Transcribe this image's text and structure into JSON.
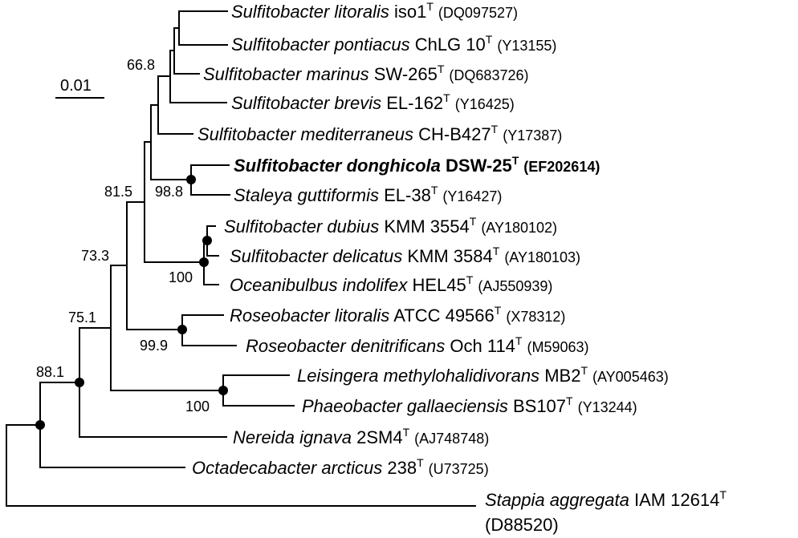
{
  "scale_bar": {
    "label": "0.01"
  },
  "taxa": [
    {
      "genus_species": "Sulfitobacter litoralis",
      "strain": "iso1",
      "type_mark": "T",
      "accession": "(DQ097527)",
      "highlight": false
    },
    {
      "genus_species": "Sulfitobacter pontiacus",
      "strain": "ChLG 10",
      "type_mark": "T",
      "accession": "(Y13155)",
      "highlight": false
    },
    {
      "genus_species": "Sulfitobacter marinus",
      "strain": "SW-265",
      "type_mark": "T",
      "accession": "(DQ683726)",
      "highlight": false
    },
    {
      "genus_species": "Sulfitobacter brevis",
      "strain": "EL-162",
      "type_mark": "T",
      "accession": "(Y16425)",
      "highlight": false
    },
    {
      "genus_species": "Sulfitobacter mediterraneus",
      "strain": "CH-B427",
      "type_mark": "T",
      "accession": "(Y17387)",
      "highlight": false
    },
    {
      "genus_species": "Sulfitobacter donghicola",
      "strain": "DSW-25",
      "type_mark": "T",
      "accession": "(EF202614)",
      "highlight": true
    },
    {
      "genus_species": "Staleya guttiformis",
      "strain": "EL-38",
      "type_mark": "T",
      "accession": "(Y16427)",
      "highlight": false
    },
    {
      "genus_species": "Sulfitobacter dubius",
      "strain": "KMM 3554",
      "type_mark": "T",
      "accession": "(AY180102)",
      "highlight": false
    },
    {
      "genus_species": "Sulfitobacter delicatus",
      "strain": "KMM 3584",
      "type_mark": "T",
      "accession": "(AY180103)",
      "highlight": false
    },
    {
      "genus_species": "Oceanibulbus indolifex",
      "strain": "HEL45",
      "type_mark": "T",
      "accession": "(AJ550939)",
      "highlight": false
    },
    {
      "genus_species": "Roseobacter litoralis",
      "strain": "ATCC 49566",
      "type_mark": "T",
      "accession": "(X78312)",
      "highlight": false
    },
    {
      "genus_species": "Roseobacter denitrificans",
      "strain": "Och 114",
      "type_mark": "T",
      "accession": "(M59063)",
      "highlight": false
    },
    {
      "genus_species": "Leisingera methylohalidivorans",
      "strain": "MB2",
      "type_mark": "T",
      "accession": "(AY005463)",
      "highlight": false
    },
    {
      "genus_species": "Phaeobacter gallaeciensis",
      "strain": "BS107",
      "type_mark": "T",
      "accession": "(Y13244)",
      "highlight": false
    },
    {
      "genus_species": "Nereida ignava",
      "strain": "2SM4",
      "type_mark": "T",
      "accession": "(AJ748748)",
      "highlight": false
    },
    {
      "genus_species": "Octadecabacter arcticus",
      "strain": "238",
      "type_mark": "T",
      "accession": "(U73725)",
      "highlight": false
    },
    {
      "genus_species": "Stappia aggregata",
      "strain": "IAM 12614",
      "type_mark": "T",
      "accession": "(D88520)",
      "highlight": false
    }
  ],
  "bootstrap": [
    "66.8",
    "81.5",
    "98.8",
    "73.3",
    "100",
    "75.1",
    "99.9",
    "88.1",
    "100"
  ]
}
